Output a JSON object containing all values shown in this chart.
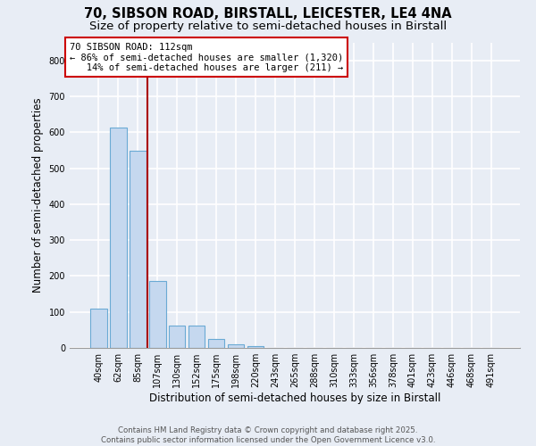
{
  "title_line1": "70, SIBSON ROAD, BIRSTALL, LEICESTER, LE4 4NA",
  "title_line2": "Size of property relative to semi-detached houses in Birstall",
  "xlabel": "Distribution of semi-detached houses by size in Birstall",
  "ylabel": "Number of semi-detached properties",
  "categories": [
    "40sqm",
    "62sqm",
    "85sqm",
    "107sqm",
    "130sqm",
    "152sqm",
    "175sqm",
    "198sqm",
    "220sqm",
    "243sqm",
    "265sqm",
    "288sqm",
    "310sqm",
    "333sqm",
    "356sqm",
    "378sqm",
    "401sqm",
    "423sqm",
    "446sqm",
    "468sqm",
    "491sqm"
  ],
  "values": [
    108,
    612,
    548,
    185,
    62,
    62,
    25,
    10,
    5,
    0,
    0,
    0,
    0,
    0,
    0,
    0,
    0,
    0,
    0,
    0,
    0
  ],
  "bar_color": "#c5d8ef",
  "bar_edgecolor": "#6aaad4",
  "vline_x_index": 2.5,
  "vline_color": "#aa0000",
  "annotation_line1": "70 SIBSON ROAD: 112sqm",
  "annotation_line2": "← 86% of semi-detached houses are smaller (1,320)",
  "annotation_line3": "   14% of semi-detached houses are larger (211) →",
  "annotation_box_edgecolor": "#cc0000",
  "ylim": [
    0,
    850
  ],
  "yticks": [
    0,
    100,
    200,
    300,
    400,
    500,
    600,
    700,
    800
  ],
  "footer_line1": "Contains HM Land Registry data © Crown copyright and database right 2025.",
  "footer_line2": "Contains public sector information licensed under the Open Government Licence v3.0.",
  "bg_color": "#e8edf5",
  "plot_bg_color": "#e8edf5",
  "grid_color": "#ffffff",
  "title_fontsize": 10.5,
  "subtitle_fontsize": 9.5,
  "tick_fontsize": 7,
  "label_fontsize": 8.5,
  "annotation_fontsize": 7.5,
  "footer_fontsize": 6.2
}
